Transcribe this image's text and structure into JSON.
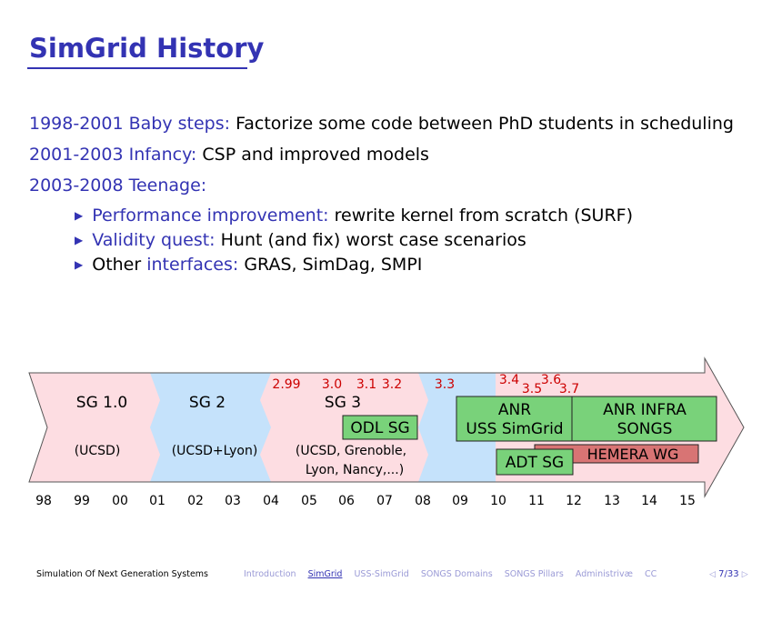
{
  "slide": {
    "title": "SimGrid History",
    "lines": [
      {
        "label": "1998-2001 Baby steps:",
        "text": " Factorize some code between PhD students in scheduling"
      },
      {
        "label": "2001-2003 Infancy:",
        "text": " CSP and improved models"
      },
      {
        "label": "2003-2008 Teenage:",
        "text": ""
      }
    ],
    "bullets": [
      {
        "pre": "",
        "label": "Performance improvement:",
        "text": " rewrite kernel from scratch (SURF)"
      },
      {
        "pre": "",
        "label": "Validity quest:",
        "text": " Hunt (and fix) worst case scenarios"
      },
      {
        "pre": "Other ",
        "label": "interfaces:",
        "text": " GRAS, SimDag, SMPI"
      }
    ]
  },
  "timeline": {
    "years": [
      "98",
      "99",
      "00",
      "01",
      "02",
      "03",
      "04",
      "05",
      "06",
      "07",
      "08",
      "09",
      "10",
      "11",
      "12",
      "13",
      "14",
      "15"
    ],
    "eras": [
      {
        "name": "SG 1.0",
        "origin": "(UCSD)"
      },
      {
        "name": "SG 2",
        "origin": "(UCSD+Lyon)"
      },
      {
        "name": "SG 3",
        "origin1": "(UCSD, Grenoble,",
        "origin2": "Lyon, Nancy,...)"
      }
    ],
    "versions": [
      "2.99",
      "3.0",
      "3.1",
      "3.2",
      "3.3",
      "3.4",
      "3.5",
      "3.6",
      "3.7"
    ],
    "projects": {
      "odl": "ODL SG",
      "anr_uss_1": "ANR",
      "anr_uss_2": "USS SimGrid",
      "anr_infra_1": "ANR INFRA",
      "anr_infra_2": "SONGS",
      "adt": "ADT SG",
      "hemera": "HEMERA WG"
    },
    "colors": {
      "pink": "#fddde2",
      "blue": "#c5e2fb",
      "green": "#79d27a",
      "red_box": "#d87474",
      "version": "#cc0000"
    }
  },
  "footer": {
    "left": "Simulation Of Next Generation Systems",
    "nav": [
      "Introduction",
      "SimGrid",
      "USS-SimGrid",
      "SONGS Domains",
      "SONGS Pillars",
      "Administrivæ",
      "CC"
    ],
    "active_index": 1,
    "page": "7/33"
  }
}
